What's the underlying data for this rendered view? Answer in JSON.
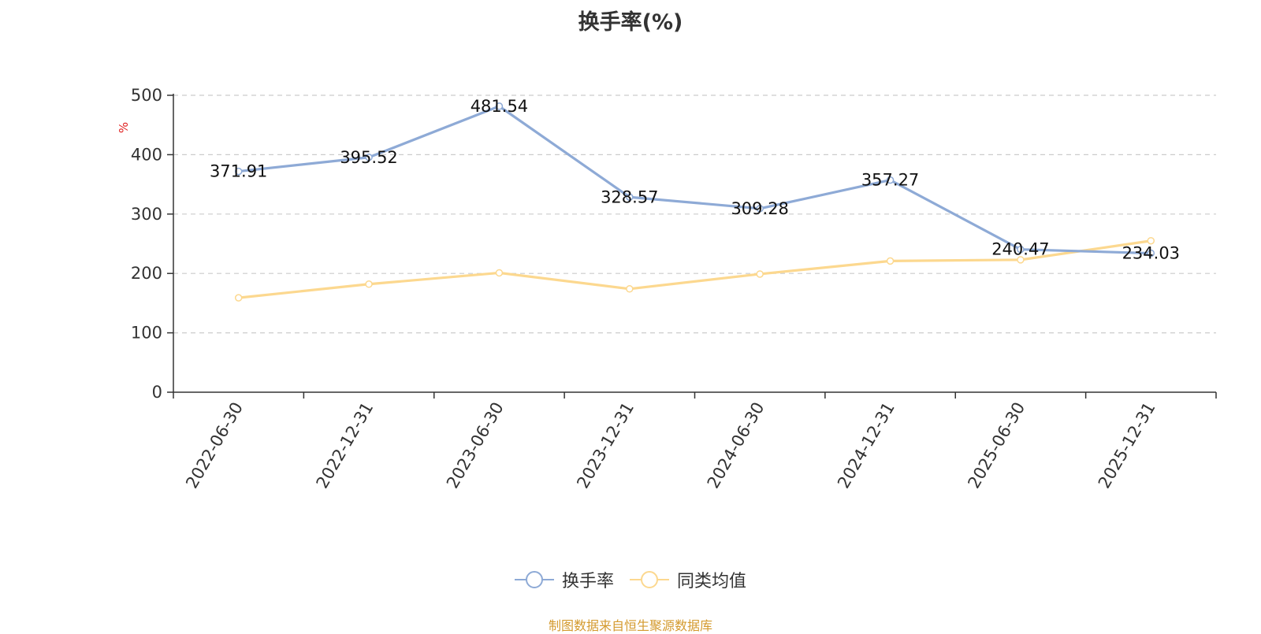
{
  "chart_data": {
    "type": "line",
    "title": "换手率(%)",
    "ylabel": "%",
    "xlabel": "",
    "ylim": [
      0,
      500
    ],
    "yticks": [
      0,
      100,
      200,
      300,
      400,
      500
    ],
    "grid": "horizontal dashed",
    "legend_position": "bottom",
    "categories": [
      "2022-06-30",
      "2022-12-31",
      "2023-06-30",
      "2023-12-31",
      "2024-06-30",
      "2024-12-31",
      "2025-06-30",
      "2025-12-31"
    ],
    "series": [
      {
        "name": "换手率",
        "color": "#8eaad6",
        "values": [
          371.91,
          395.52,
          481.54,
          328.57,
          309.28,
          357.27,
          240.47,
          234.03
        ],
        "labels": [
          "371.91",
          "395.52",
          "481.54",
          "328.57",
          "309.28",
          "357.27",
          "240.47",
          "234.03"
        ]
      },
      {
        "name": "同类均值",
        "color": "#fcd88f",
        "values": [
          159,
          182,
          201,
          174,
          199,
          221,
          223,
          255
        ]
      }
    ],
    "source": "制图数据来自恒生聚源数据库"
  }
}
